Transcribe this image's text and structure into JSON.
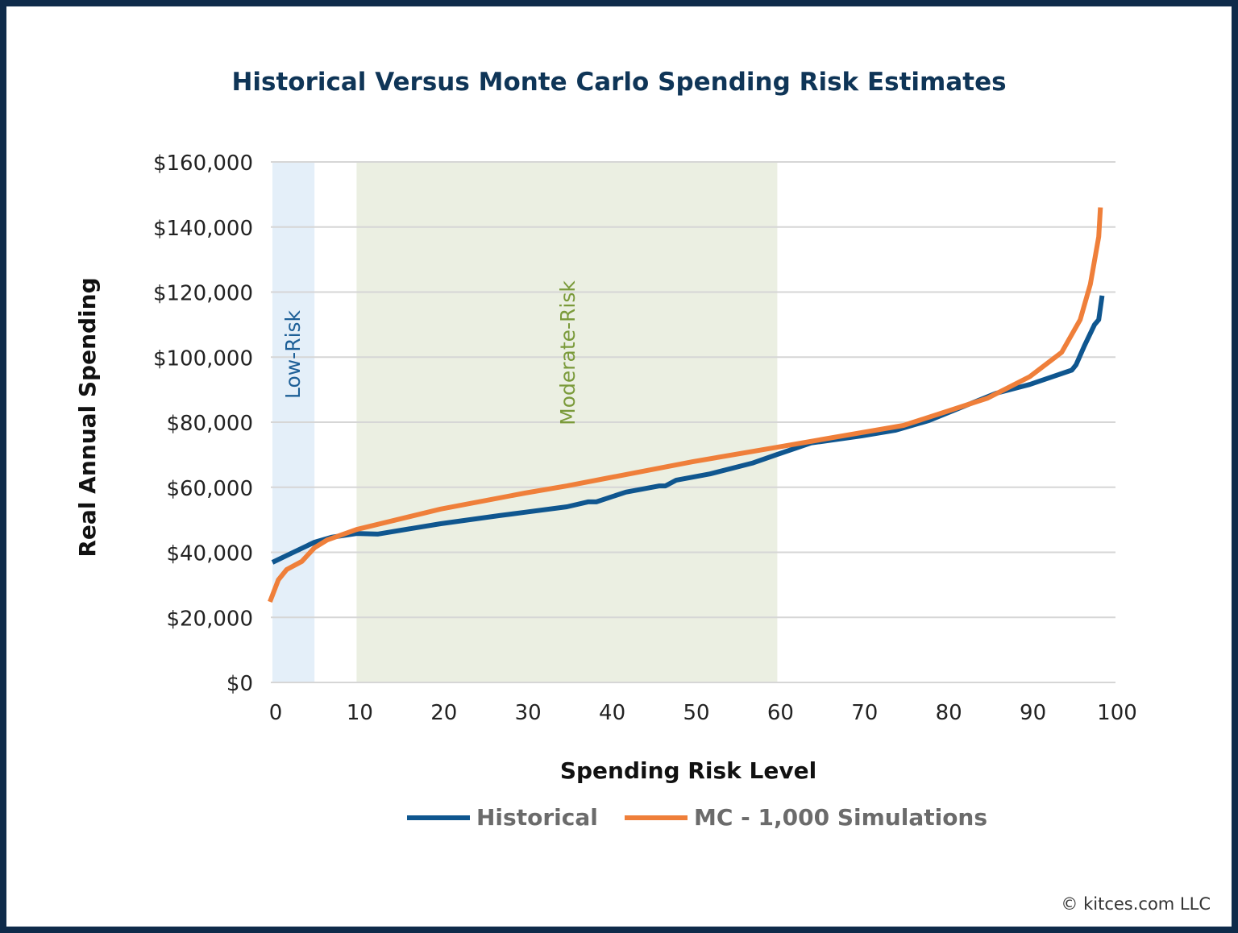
{
  "chart_data": {
    "type": "line",
    "title": "Historical Versus Monte Carlo Spending Risk Estimates",
    "xlabel": "Spending Risk Level",
    "ylabel": "Real Annual Spending",
    "xlim": [
      0,
      100
    ],
    "ylim": [
      0,
      160000
    ],
    "xticks": [
      "0",
      "10",
      "20",
      "30",
      "40",
      "50",
      "60",
      "70",
      "80",
      "90",
      "100"
    ],
    "yticks": [
      "$0",
      "$20,000",
      "$40,000",
      "$60,000",
      "$80,000",
      "$100,000",
      "$120,000",
      "$140,000",
      "$160,000"
    ],
    "grid": true,
    "legend_position": "bottom",
    "bands": [
      {
        "label": "Low-Risk",
        "from": 0,
        "to": 5,
        "color": "#e4eff9",
        "text_color": "#1d5f97"
      },
      {
        "label": "Moderate-Risk",
        "from": 10,
        "to": 60,
        "color": "#ebefe2",
        "text_color": "#7a9a3a"
      }
    ],
    "series": [
      {
        "name": "Historical",
        "color": "#0f568f",
        "x": [
          0,
          2,
          5,
          7,
          10,
          12.5,
          20,
          27,
          30,
          35,
          37.5,
          38.5,
          42,
          46,
          46.7,
          48,
          52,
          57,
          60,
          64,
          70,
          74,
          78,
          82,
          86,
          90,
          95,
          95.5,
          96.5,
          97.7,
          98.2,
          98.6
        ],
        "y": [
          36900,
          39400,
          43100,
          44600,
          45800,
          45600,
          48800,
          51300,
          52300,
          54000,
          55500,
          55500,
          58500,
          60400,
          60400,
          62200,
          64100,
          67400,
          70100,
          73600,
          75800,
          77500,
          80500,
          84700,
          88900,
          91600,
          96000,
          97600,
          103500,
          110000,
          111500,
          118900
        ]
      },
      {
        "name": "MC - 1,000 Simulations",
        "color": "#ef7f3a",
        "x": [
          -0.3,
          0.7,
          1.7,
          3.5,
          5,
          6.5,
          10,
          20,
          30,
          35,
          40,
          50,
          60,
          70,
          75,
          80,
          85,
          90,
          93.8,
          96,
          97.2,
          98.2,
          98.4
        ],
        "y": [
          24800,
          31500,
          34700,
          37200,
          41400,
          43800,
          47000,
          53300,
          58200,
          60400,
          62900,
          67900,
          72300,
          76800,
          79000,
          83200,
          87400,
          94000,
          101500,
          111500,
          122400,
          137000,
          146000
        ]
      }
    ]
  },
  "credit": "© kitces.com LLC"
}
